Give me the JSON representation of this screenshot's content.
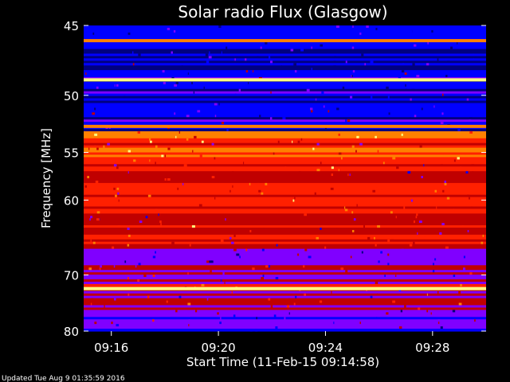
{
  "chart_data": {
    "type": "heatmap",
    "title": "Solar radio Flux (Glasgow)",
    "xlabel": "Start Time (11-Feb-15 09:14:58)",
    "ylabel": "Frequency [MHz]",
    "x_ticks": [
      "09:16",
      "09:20",
      "09:24",
      "09:28"
    ],
    "y_ticks": [
      "45",
      "50",
      "55",
      "60",
      "70",
      "80"
    ],
    "ylim": [
      45,
      80
    ],
    "y_scale": "reciprocal",
    "xlim": [
      "09:14:58",
      "09:30:00"
    ],
    "colormap": [
      "#000080",
      "#0000ff",
      "#8000ff",
      "#c00000",
      "#ff2000",
      "#ff8000",
      "#ffff80"
    ],
    "grid": false,
    "legend": "none",
    "bright_bands_mhz": [
      {
        "freq": 46.0,
        "level": "high"
      },
      {
        "freq": 48.8,
        "level": "very-high"
      },
      {
        "freq": 52.6,
        "level": "high"
      },
      {
        "freq": 72.2,
        "level": "very-high"
      }
    ]
  },
  "footer": {
    "updated": "Updated Tue Aug  9 01:35:59 2016"
  }
}
